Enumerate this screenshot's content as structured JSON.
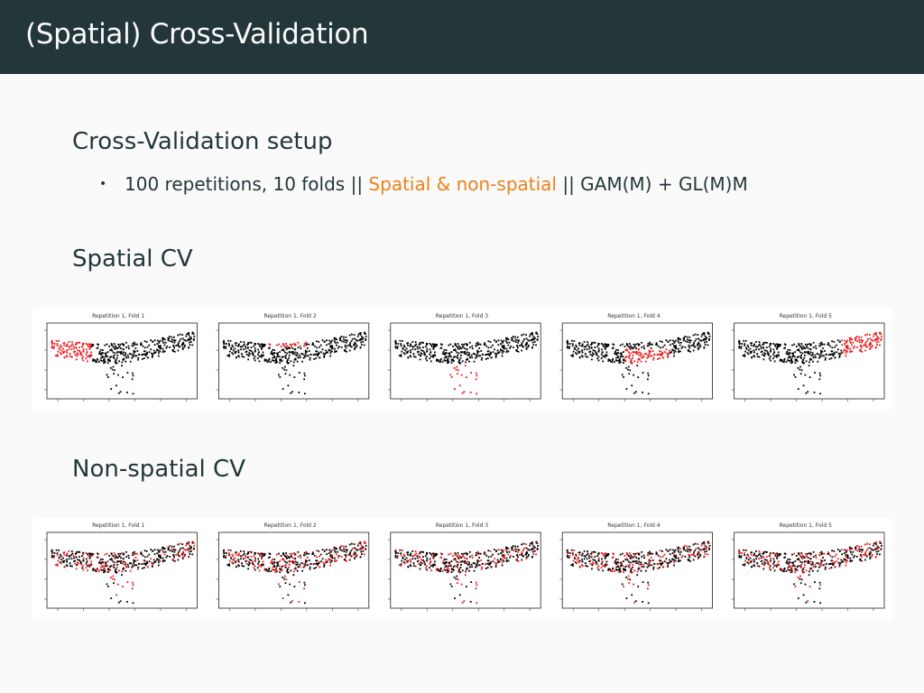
{
  "slide": {
    "title": "(Spatial) Cross-Validation",
    "sections": {
      "setup": {
        "heading": "Cross-Validation setup",
        "bullet": {
          "part1": "100 repetitions, 10 folds || ",
          "highlight": "Spatial & non-spatial",
          "part2": " || GAM(M) + GL(M)M"
        }
      },
      "spatial": {
        "heading": "Spatial CV"
      },
      "nonspatial": {
        "heading": "Non-spatial CV"
      }
    },
    "colors": {
      "titlebar_bg": "#23373b",
      "accent": "#eb811b",
      "test_points": "#e8191b",
      "train_points": "#000000"
    }
  },
  "panels": {
    "spatial": [
      {
        "title": "Repetition 1, Fold 1",
        "test_region": "west"
      },
      {
        "title": "Repetition 1, Fold 2",
        "test_region": "north-center"
      },
      {
        "title": "Repetition 1, Fold 3",
        "test_region": "south"
      },
      {
        "title": "Repetition 1, Fold 4",
        "test_region": "center"
      },
      {
        "title": "Repetition 1, Fold 5",
        "test_region": "east"
      }
    ],
    "nonspatial": [
      {
        "title": "Repetition 1, Fold 1",
        "test_region": "random"
      },
      {
        "title": "Repetition 1, Fold 2",
        "test_region": "random"
      },
      {
        "title": "Repetition 1, Fold 3",
        "test_region": "random"
      },
      {
        "title": "Repetition 1, Fold 4",
        "test_region": "random"
      },
      {
        "title": "Repetition 1, Fold 5",
        "test_region": "random"
      }
    ]
  }
}
